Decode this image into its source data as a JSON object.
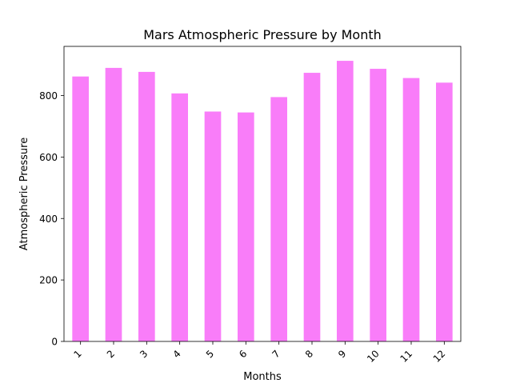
{
  "chart_data": {
    "type": "bar",
    "title": "Mars Atmospheric Pressure by Month",
    "xlabel": "Months",
    "ylabel": "Atmospheric Pressure",
    "categories": [
      "1",
      "2",
      "3",
      "4",
      "5",
      "6",
      "7",
      "8",
      "9",
      "10",
      "11",
      "12"
    ],
    "values": [
      862,
      890,
      877,
      807,
      748,
      745,
      795,
      874,
      913,
      887,
      857,
      842
    ],
    "ylim": [
      0,
      960
    ],
    "yticks": [
      0,
      200,
      400,
      600,
      800
    ],
    "grid": false,
    "legend": "none",
    "bar_color": "#F97DF9",
    "x_tick_rotation": 45
  }
}
